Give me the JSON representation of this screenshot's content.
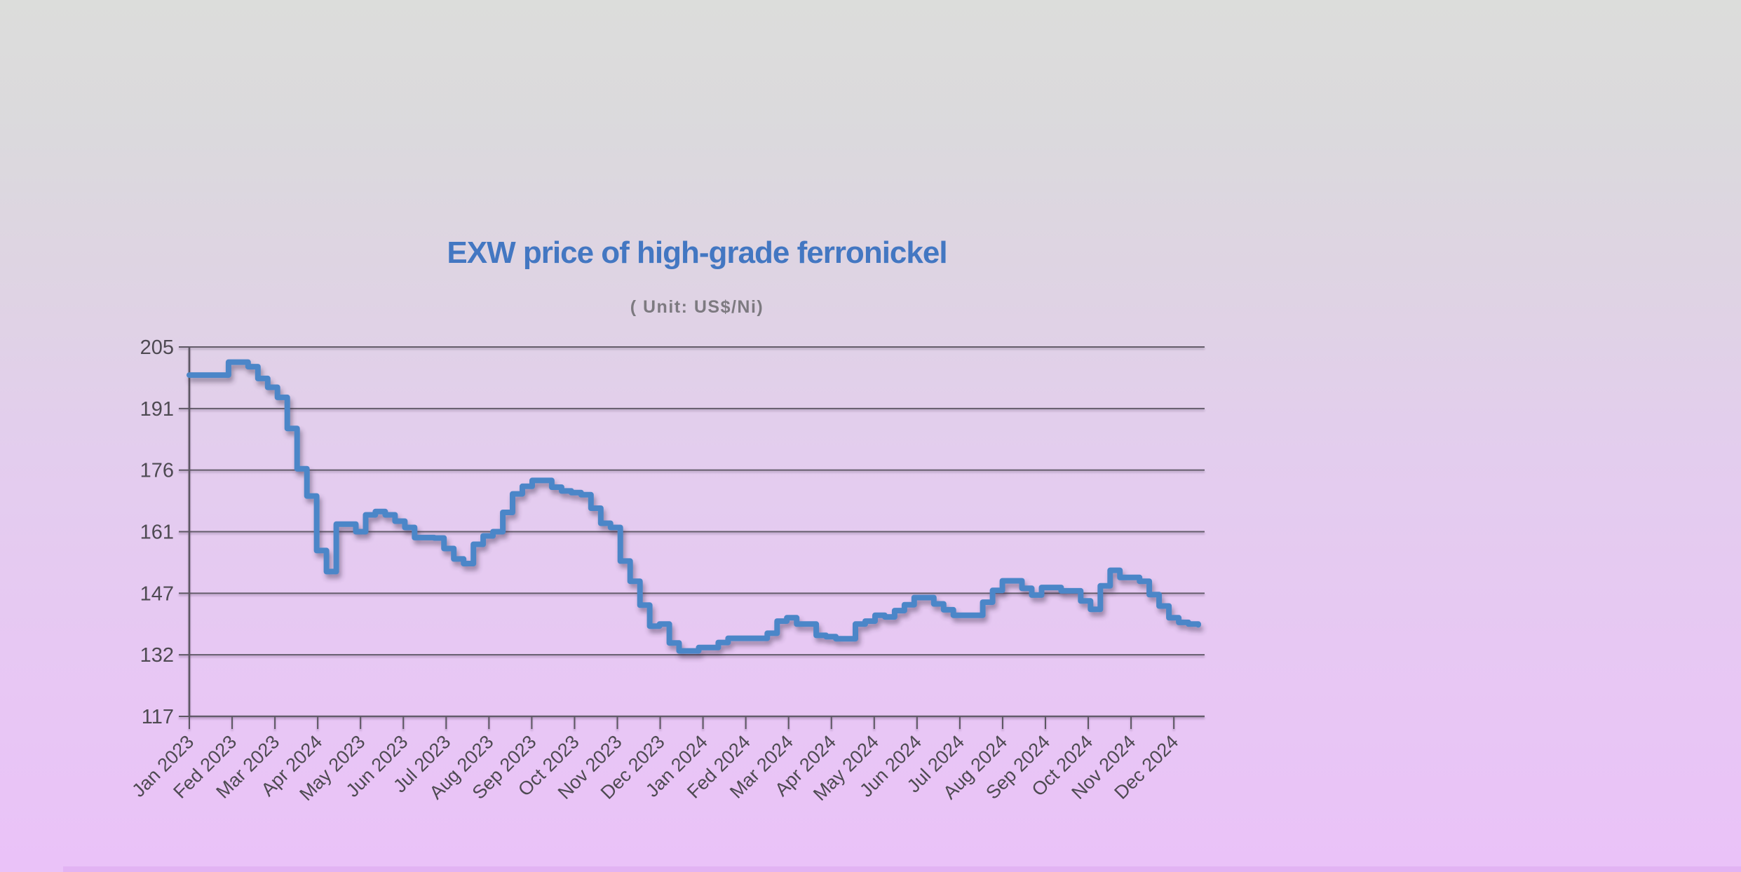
{
  "page": {
    "background_top_color": "#dcdddb",
    "background_bottom_color": "#eac2f8",
    "bottom_strip_color": "#e0b0f2"
  },
  "chart": {
    "title": "EXW price of high-grade ferronickel",
    "subtitle": "( Unit: US$/Ni)",
    "colors": {
      "title": "#4377c2",
      "subtitle": "#7d7a80",
      "line": "#4b86c8",
      "grid": "#5c5662",
      "tick_label": "#4e4a52"
    }
  },
  "chart_data": {
    "type": "line",
    "title": "EXW price of high-grade ferronickel",
    "subtitle_unit": "( Unit: US$/Ni)",
    "unit": "US$/Ni",
    "xlabel": "",
    "ylabel": "",
    "ylim": [
      117,
      205
    ],
    "y_tick_labels": [
      "205",
      "191",
      "176",
      "161",
      "147",
      "132",
      "117"
    ],
    "x_tick_labels": [
      "Jan 2023",
      "Fed 2023",
      "Mar 2023",
      "Apr 2024",
      "May 2023",
      "Jun 2023",
      "Jul 2023",
      "Aug 2023",
      "Sep 2023",
      "Oct 2023",
      "Nov 2023",
      "Dec 2023",
      "Jan 2024",
      "Fed 2024",
      "Mar 2024",
      "Apr 2024",
      "May 2024",
      "Jun 2024",
      "Jul 2024",
      "Aug 2024",
      "Sep 2024",
      "Oct 2024",
      "Nov 2024",
      "Dec 2024"
    ],
    "grid": "horizontal",
    "legend_position": "none",
    "line_style": "step-after",
    "series": [
      {
        "name": "EXW price of high-grade ferronickel",
        "cadence": "weekly",
        "values": [
          198.3,
          198.3,
          198.3,
          198.3,
          201.4,
          201.4,
          200.3,
          197.5,
          195.4,
          193.0,
          185.6,
          176.0,
          169.5,
          156.5,
          151.5,
          162.8,
          162.8,
          161.0,
          165.0,
          165.8,
          165.0,
          163.5,
          162.0,
          159.6,
          159.6,
          159.5,
          157.0,
          154.5,
          153.4,
          158.0,
          160.0,
          161.0,
          165.6,
          170.0,
          171.8,
          173.2,
          173.2,
          171.6,
          170.7,
          170.3,
          169.8,
          166.6,
          163.0,
          162.0,
          154.0,
          149.2,
          143.5,
          138.5,
          139.0,
          134.5,
          132.6,
          132.6,
          133.4,
          133.4,
          134.6,
          135.6,
          135.6,
          135.6,
          135.6,
          136.8,
          139.7,
          140.5,
          139.0,
          139.0,
          136.3,
          136.0,
          135.5,
          135.5,
          139.0,
          139.7,
          141.1,
          140.7,
          142.2,
          143.6,
          145.3,
          145.3,
          143.8,
          142.4,
          141.1,
          141.1,
          141.1,
          144.2,
          147.0,
          149.3,
          149.3,
          147.5,
          145.9,
          147.7,
          147.7,
          146.9,
          146.9,
          144.5,
          142.5,
          148.1,
          151.8,
          150.1,
          150.1,
          149.2,
          146.0,
          143.3,
          140.5,
          139.4,
          139.0,
          138.8
        ]
      }
    ]
  }
}
